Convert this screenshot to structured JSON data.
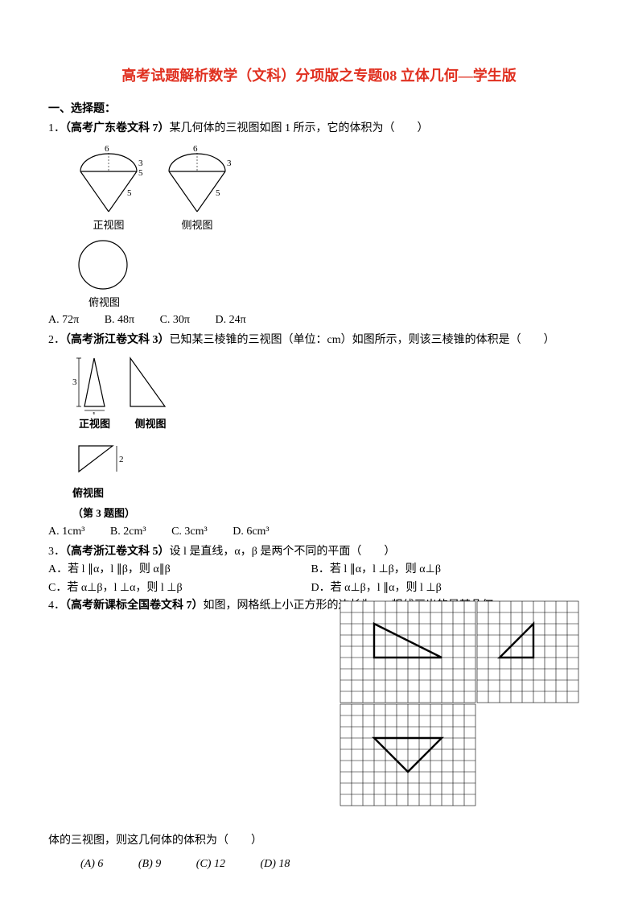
{
  "title_parts": {
    "p1": "高考试题解析数学（文科）分项版之专题",
    "num": "08",
    "p2": " 立体几何—学生版"
  },
  "section1": "一、选择题：",
  "q1": {
    "prefix": "1．",
    "source": "（高考广东卷文科 7）",
    "text": "某几何体的三视图如图 1 所示，它的体积为（　　）",
    "captions": {
      "front": "正视图",
      "side": "侧视图",
      "top": "俯视图"
    },
    "options": {
      "A": "A. 72π",
      "B": "B. 48π",
      "C": "C. 30π",
      "D": "D. 24π"
    },
    "labels": {
      "six": "6",
      "three": "3",
      "five": "5"
    }
  },
  "q2": {
    "prefix": "2．",
    "source": "（高考浙江卷文科 3）",
    "text": "已知某三棱锥的三视图（单位：cm）如图所示，则该三棱锥的体积是（　　）",
    "captions": {
      "front": "正视图",
      "side": "侧视图",
      "top": "俯视图",
      "title": "（第 3 题图）"
    },
    "options": {
      "A": "A. 1cm³",
      "B": "B. 2cm³",
      "C": "C. 3cm³",
      "D": "D. 6cm³"
    },
    "labels": {
      "three": "3",
      "one": "1",
      "two": "2"
    }
  },
  "q3": {
    "prefix": "3．",
    "source": "（高考浙江卷文科 5）",
    "text": "设 l 是直线，α，β 是两个不同的平面（　　）",
    "options": {
      "A": "A．若 l ∥α，l ∥β，则 α∥β",
      "B": "B．若 l ∥α，l ⊥β，则 α⊥β",
      "C": "C．若 α⊥β，l ⊥α，则 l ⊥β",
      "D": "D．若 α⊥β，l ∥α，则 l ⊥β"
    }
  },
  "q4": {
    "prefix": "4．",
    "source": "（高考新课标全国卷文科 7）",
    "text1": "如图，网格纸上小正方形的边长为 1，粗线画出的是某几何",
    "text2": "体的三视图，则这几何体的体积为（　　）",
    "options": {
      "A": "(A) 6",
      "B": "(B)  9",
      "C": "(C) 12",
      "D": "(D) 18"
    },
    "grid": {
      "cell": 14,
      "bg": "#ffffff",
      "line": "#000000",
      "shape": "#000000",
      "stroke_thin": 0.6,
      "stroke_thick": 2.4
    }
  }
}
